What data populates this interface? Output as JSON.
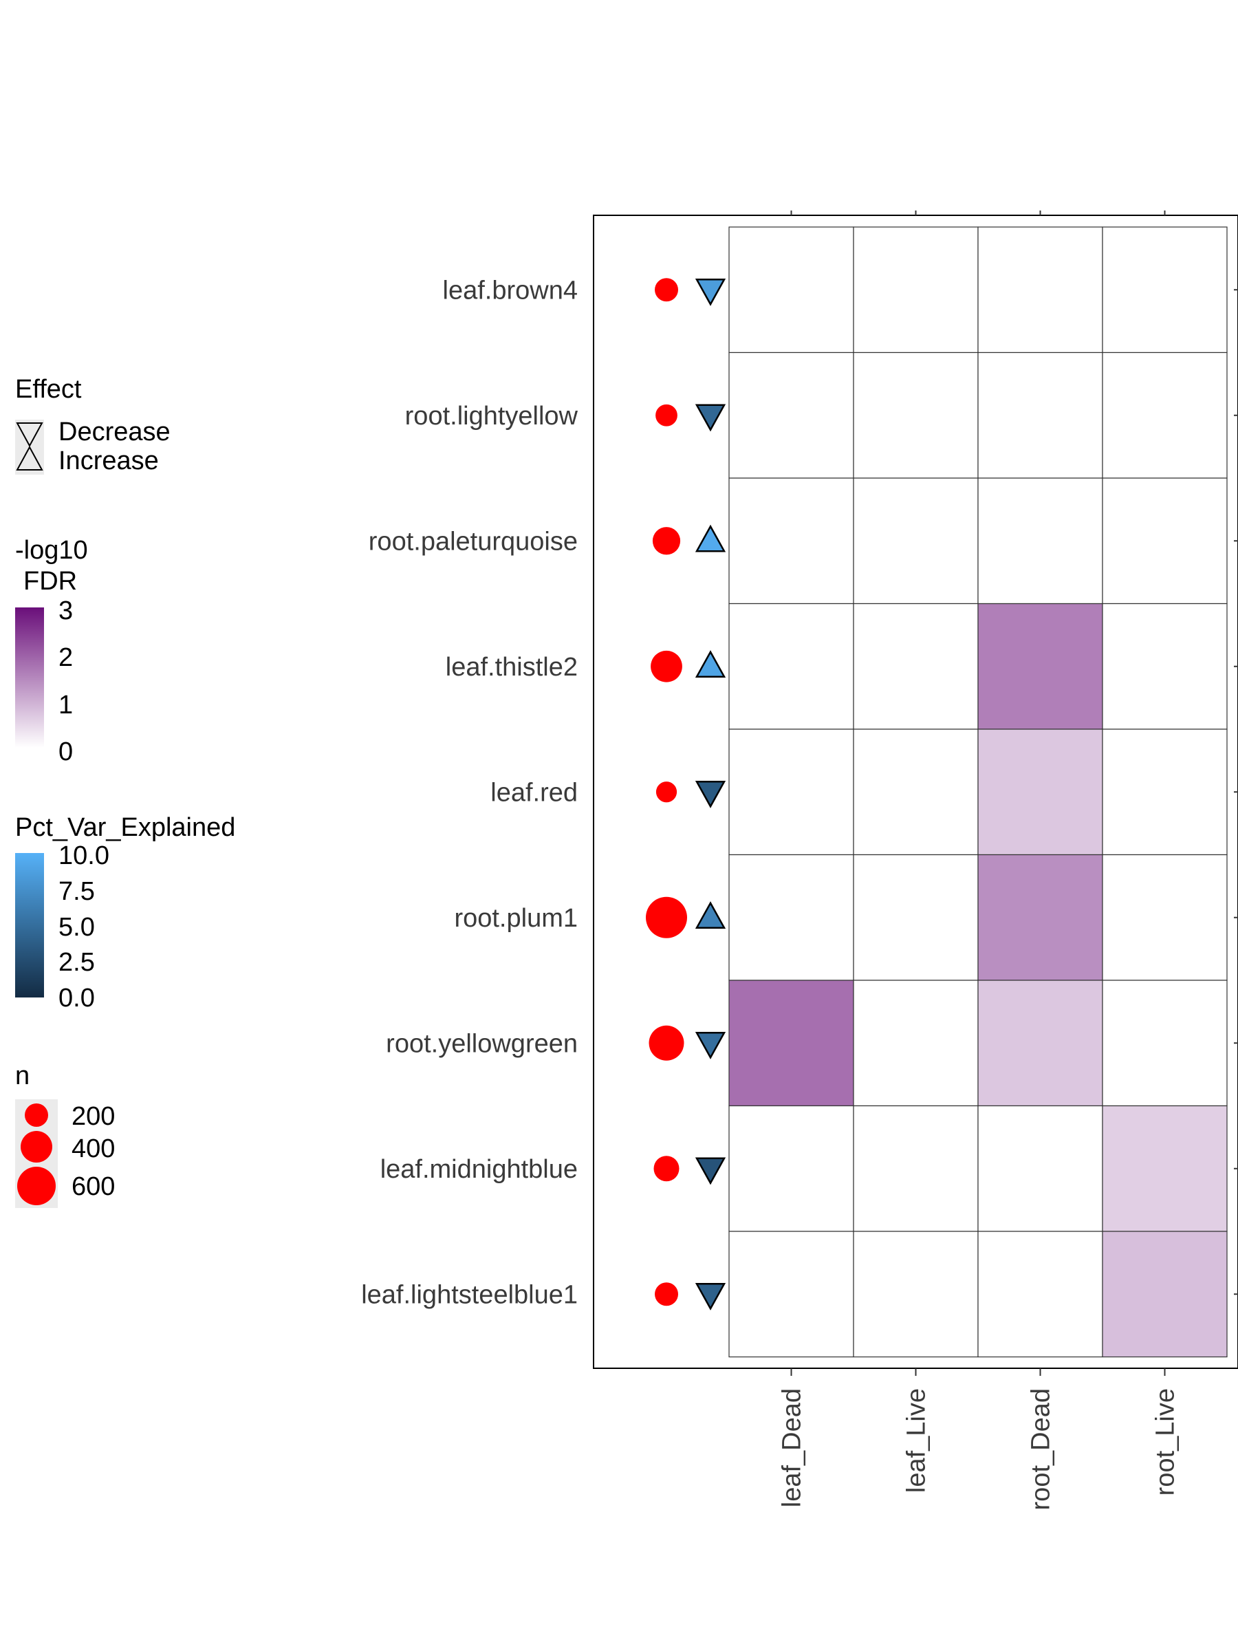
{
  "chart_data": {
    "type": "heatmap",
    "rows": [
      "leaf.brown4",
      "root.lightyellow",
      "root.paleturquoise",
      "leaf.thistle2",
      "leaf.red",
      "root.plum1",
      "root.yellowgreen",
      "leaf.midnightblue",
      "leaf.lightsteelblue1"
    ],
    "columns": [
      "leaf_Dead",
      "leaf_Live",
      "root_Dead",
      "root_Live"
    ],
    "values_neg_log10_fdr": [
      [
        0,
        0,
        0,
        0
      ],
      [
        0,
        0,
        0,
        0
      ],
      [
        0,
        0,
        0,
        0
      ],
      [
        0,
        0,
        1.6,
        0
      ],
      [
        0,
        0,
        0.7,
        0
      ],
      [
        0,
        0,
        1.4,
        0
      ],
      [
        1.8,
        0,
        0.7,
        0
      ],
      [
        0,
        0,
        0,
        0.6
      ],
      [
        0,
        0,
        0,
        0.8
      ]
    ],
    "n": [
      150,
      120,
      260,
      380,
      100,
      800,
      520,
      200,
      150
    ],
    "effect": [
      "Decrease",
      "Decrease",
      "Increase",
      "Increase",
      "Decrease",
      "Increase",
      "Decrease",
      "Decrease",
      "Decrease"
    ],
    "pct_var_explained": [
      8.5,
      4.5,
      9.5,
      9.0,
      3.5,
      6.5,
      5.0,
      3.0,
      4.0
    ],
    "fill_colors": {
      "low": "#ffffff",
      "high": "#6a0f7a"
    },
    "effect_colors": {
      "low": "#132b43",
      "high": "#56b1f7"
    },
    "point_color": "#ff0000",
    "legends": {
      "effect": {
        "title": "Effect",
        "items": [
          "Decrease",
          "Increase"
        ]
      },
      "fdr": {
        "title_line1": "-log10",
        "title_line2": "FDR",
        "ticks": [
          "3",
          "2",
          "1",
          "0"
        ],
        "max": 3
      },
      "pct": {
        "title": "Pct_Var_Explained",
        "ticks": [
          "10.0",
          "7.5",
          "5.0",
          "2.5",
          "0.0"
        ],
        "max": 10
      },
      "n": {
        "title": "n",
        "items": [
          "200",
          "400",
          "600"
        ]
      }
    }
  }
}
